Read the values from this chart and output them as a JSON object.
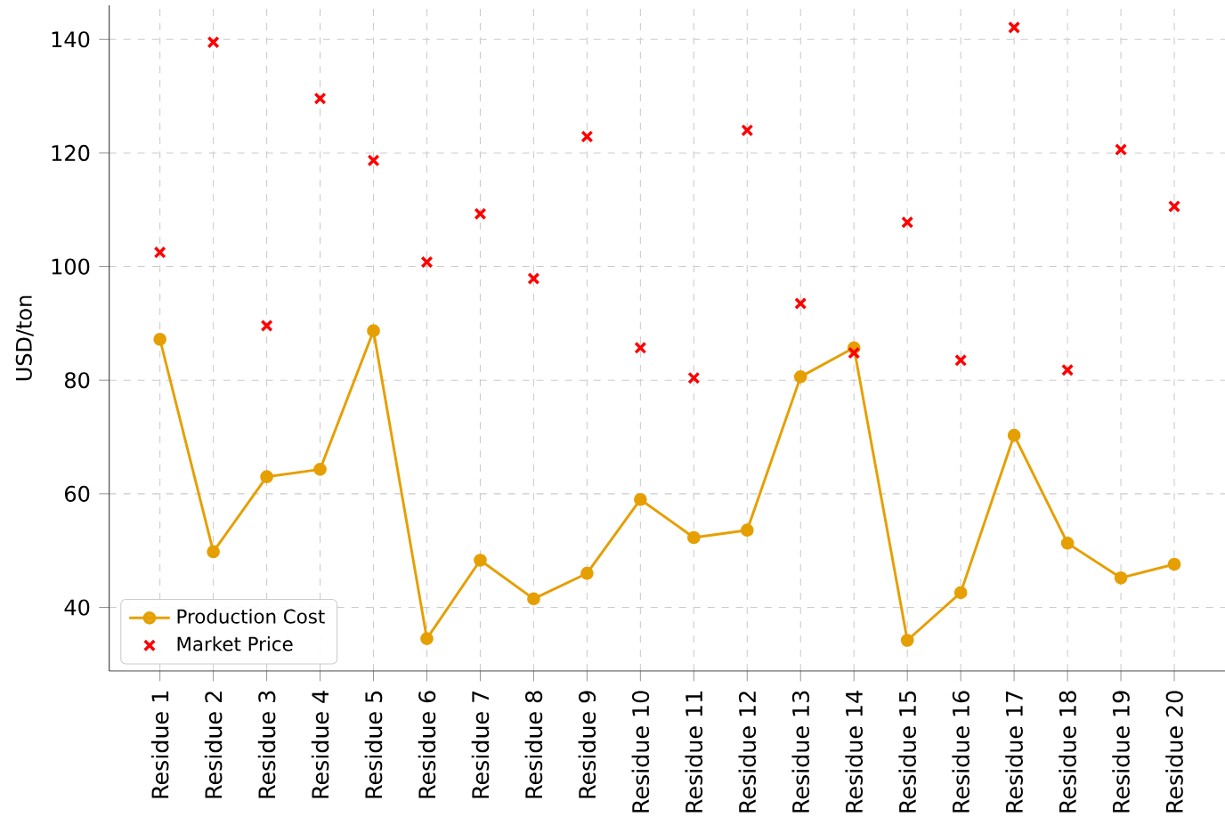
{
  "chart_data": {
    "type": "line",
    "ylabel": "USD/ton",
    "categories": [
      "Residue 1",
      "Residue 2",
      "Residue 3",
      "Residue 4",
      "Residue 5",
      "Residue 6",
      "Residue 7",
      "Residue 8",
      "Residue 9",
      "Residue 10",
      "Residue 11",
      "Residue 12",
      "Residue 13",
      "Residue 14",
      "Residue 15",
      "Residue 16",
      "Residue 17",
      "Residue 18",
      "Residue 19",
      "Residue 20"
    ],
    "series": [
      {
        "name": "Production Cost",
        "marker": "circle",
        "color": "#e69f00",
        "values": [
          87.2,
          49.8,
          63.0,
          64.3,
          88.7,
          34.5,
          48.3,
          41.5,
          46.0,
          59.0,
          52.3,
          53.6,
          80.6,
          85.7,
          34.2,
          42.6,
          70.3,
          51.3,
          45.2,
          47.6
        ]
      },
      {
        "name": "Market Price",
        "type": "scatter",
        "marker": "cross",
        "color": "#ff0000",
        "values": [
          102.5,
          139.5,
          89.6,
          129.6,
          118.7,
          100.8,
          109.3,
          97.9,
          122.9,
          85.7,
          80.4,
          124.0,
          93.5,
          84.8,
          107.8,
          83.5,
          142.1,
          81.8,
          120.6,
          110.6
        ]
      }
    ],
    "ylim": [
      28.8,
      146
    ],
    "yticks": [
      40,
      60,
      80,
      100,
      120,
      140
    ],
    "grid": true,
    "legend": "bottom left"
  }
}
